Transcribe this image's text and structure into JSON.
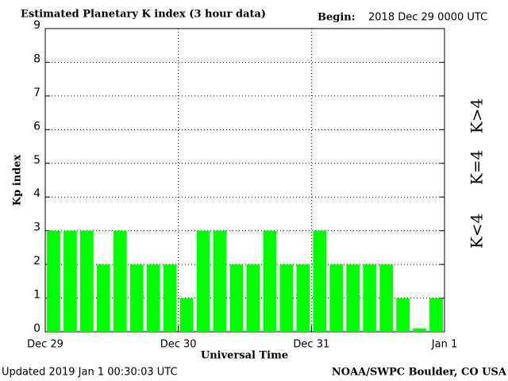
{
  "chart_data": {
    "type": "bar",
    "title": "Estimated Planetary K index (3 hour data)",
    "begin_label": "Begin:",
    "begin_value": "2018 Dec 29 0000 UTC",
    "y_label": "Kp index",
    "x_label": "Universal Time",
    "updated": "Updated 2019 Jan  1 00:30:03 UTC",
    "credit": "NOAA/SWPC Boulder, CO USA",
    "categories": [
      null,
      null,
      null,
      null,
      null,
      null,
      null,
      null,
      null,
      null,
      null,
      null,
      null,
      null,
      null,
      null,
      null,
      null,
      null,
      null,
      null,
      null,
      null,
      null
    ],
    "values": [
      3,
      3,
      3,
      2,
      3,
      2,
      2,
      2,
      1,
      3,
      3,
      2,
      2,
      3,
      2,
      2,
      3,
      2,
      2,
      2,
      2,
      1,
      0.1,
      1
    ],
    "color": "#00ff00",
    "xlim": [
      0,
      24
    ],
    "xticks": [
      {
        "value": 0,
        "label": "Dec 29"
      },
      {
        "value": 8,
        "label": "Dec 30"
      },
      {
        "value": 16,
        "label": "Dec 31"
      },
      {
        "value": 24,
        "label": "Jan 1"
      }
    ],
    "ylim": [
      0,
      9
    ],
    "yticks": [
      0,
      1,
      2,
      3,
      4,
      5,
      6,
      7,
      8,
      9
    ],
    "grid": true,
    "legend": [
      {
        "name": "K<4",
        "color": "#33ee33"
      },
      {
        "name": "K=4",
        "color": "#ffcc00"
      },
      {
        "name": "K>4",
        "color": "#ff3300"
      }
    ]
  }
}
